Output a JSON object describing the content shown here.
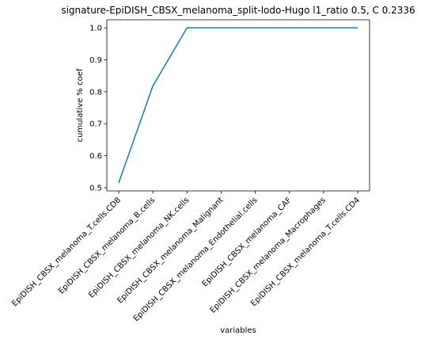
{
  "chart_data": {
    "type": "line",
    "title": "signature-EpiDISH_CBSX_melanoma_split-lodo-Hugo l1_ratio 0.5, C 0.2336",
    "xlabel": "variables",
    "ylabel": "cumulative % coef",
    "categories": [
      "EpiDISH_CBSX_melanoma_T.cells.CD8",
      "EpiDISH_CBSX_melanoma_B.cells",
      "EpiDISH_CBSX_melanoma_NK.cells",
      "EpiDISH_CBSX_melanoma_Malignant",
      "EpiDISH_CBSX_melanoma_Endothelial.cells",
      "EpiDISH_CBSX_melanoma_CAF",
      "EpiDISH_CBSX_melanoma_Macrophages",
      "EpiDISH_CBSX_melanoma_T.cells.CD4"
    ],
    "series": [
      {
        "values": [
          0.515,
          0.818,
          1.0,
          1.0,
          1.0,
          1.0,
          1.0,
          1.0
        ],
        "color": "#1f77b4"
      }
    ],
    "yticks": [
      0.5,
      0.6,
      0.7,
      0.8,
      0.9,
      1.0
    ],
    "ytick_labels": [
      "0.5",
      "0.6",
      "0.7",
      "0.8",
      "0.9",
      "1.0"
    ],
    "ylim": [
      0.49,
      1.025
    ],
    "grid": false,
    "legend": "none"
  }
}
